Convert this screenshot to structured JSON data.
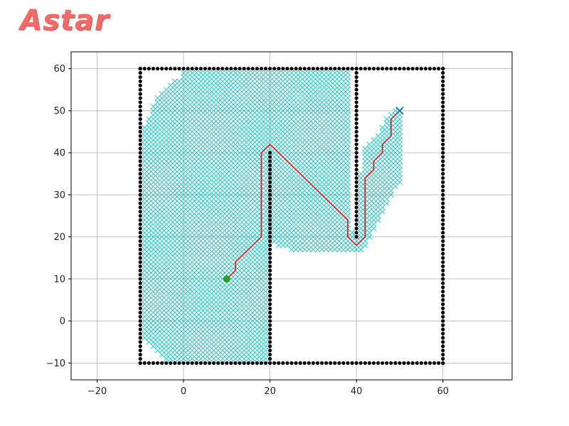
{
  "app": {
    "title": "Astar"
  },
  "colors": {
    "background": "#ffffff",
    "title": "#f26b6b",
    "wall": "#000000",
    "explored": "#2ec4c4",
    "path": "#d62728",
    "start": "#2ca02c",
    "goal": "#1f77b4",
    "grid": "#b0b0b0"
  },
  "chart_data": {
    "type": "scatter",
    "title": "",
    "xlabel": "",
    "ylabel": "",
    "xlim": [
      -26,
      76
    ],
    "ylim": [
      -14,
      64
    ],
    "x_ticks": [
      -20,
      0,
      20,
      40,
      60
    ],
    "y_ticks": [
      -10,
      0,
      10,
      20,
      30,
      40,
      50,
      60
    ],
    "x_tick_labels": [
      "−20",
      "0",
      "20",
      "40",
      "60"
    ],
    "y_tick_labels": [
      "−10",
      "0",
      "10",
      "20",
      "30",
      "40",
      "50",
      "60"
    ],
    "grid": true,
    "grid_step": 2,
    "series": [
      {
        "name": "walls",
        "marker": "dot",
        "segments": [
          {
            "from": [
              -10,
              -10
            ],
            "to": [
              60,
              -10
            ]
          },
          {
            "from": [
              -10,
              60
            ],
            "to": [
              60,
              60
            ]
          },
          {
            "from": [
              -10,
              -10
            ],
            "to": [
              -10,
              60
            ]
          },
          {
            "from": [
              60,
              -10
            ],
            "to": [
              60,
              60
            ]
          },
          {
            "from": [
              20,
              -10
            ],
            "to": [
              20,
              40
            ]
          },
          {
            "from": [
              40,
              20
            ],
            "to": [
              40,
              60
            ]
          }
        ]
      },
      {
        "name": "explored",
        "marker": "x",
        "row_spans": [
          {
            "y": 59,
            "x_ranges": [
              [
                0,
                38
              ]
            ]
          },
          {
            "y": 58,
            "x_ranges": [
              [
                0,
                38
              ]
            ]
          },
          {
            "y": 57,
            "x_ranges": [
              [
                -2,
                38
              ]
            ]
          },
          {
            "y": 56,
            "x_ranges": [
              [
                -3,
                38
              ]
            ]
          },
          {
            "y": 55,
            "x_ranges": [
              [
                -4,
                38
              ]
            ]
          },
          {
            "y": 54,
            "x_ranges": [
              [
                -5,
                38
              ]
            ]
          },
          {
            "y": 53,
            "x_ranges": [
              [
                -6,
                38
              ]
            ]
          },
          {
            "y": 52,
            "x_ranges": [
              [
                -6,
                38
              ]
            ]
          },
          {
            "y": 51,
            "x_ranges": [
              [
                -7,
                38
              ]
            ]
          },
          {
            "y": 50,
            "x_ranges": [
              [
                -7,
                38
              ],
              [
                49,
                50
              ]
            ]
          },
          {
            "y": 49,
            "x_ranges": [
              [
                -7,
                38
              ],
              [
                48,
                50
              ]
            ]
          },
          {
            "y": 48,
            "x_ranges": [
              [
                -8,
                38
              ],
              [
                47,
                50
              ]
            ]
          },
          {
            "y": 47,
            "x_ranges": [
              [
                -8,
                38
              ],
              [
                47,
                50
              ]
            ]
          },
          {
            "y": 46,
            "x_ranges": [
              [
                -9,
                38
              ],
              [
                46,
                50
              ]
            ]
          },
          {
            "y": 45,
            "x_ranges": [
              [
                -9,
                38
              ],
              [
                46,
                50
              ]
            ]
          },
          {
            "y": 44,
            "x_ranges": [
              [
                -9,
                38
              ],
              [
                45,
                50
              ]
            ]
          },
          {
            "y": 43,
            "x_ranges": [
              [
                -9,
                38
              ],
              [
                44,
                50
              ]
            ]
          },
          {
            "y": 42,
            "x_ranges": [
              [
                -9,
                38
              ],
              [
                43,
                50
              ]
            ]
          },
          {
            "y": 41,
            "x_ranges": [
              [
                -9,
                38
              ],
              [
                42,
                50
              ]
            ]
          },
          {
            "y": 40,
            "x_ranges": [
              [
                -9,
                38
              ],
              [
                42,
                50
              ]
            ]
          },
          {
            "y": 39,
            "x_ranges": [
              [
                -9,
                38
              ],
              [
                42,
                50
              ]
            ]
          },
          {
            "y": 38,
            "x_ranges": [
              [
                -9,
                38
              ],
              [
                42,
                50
              ]
            ]
          },
          {
            "y": 37,
            "x_ranges": [
              [
                -9,
                38
              ],
              [
                42,
                50
              ]
            ]
          },
          {
            "y": 36,
            "x_ranges": [
              [
                -9,
                38
              ],
              [
                42,
                50
              ]
            ]
          },
          {
            "y": 35,
            "x_ranges": [
              [
                -9,
                38
              ],
              [
                41,
                50
              ]
            ]
          },
          {
            "y": 34,
            "x_ranges": [
              [
                -9,
                38
              ],
              [
                41,
                50
              ]
            ]
          },
          {
            "y": 33,
            "x_ranges": [
              [
                -9,
                38
              ],
              [
                41,
                50
              ]
            ]
          },
          {
            "y": 32,
            "x_ranges": [
              [
                -9,
                38
              ],
              [
                41,
                49
              ]
            ]
          },
          {
            "y": 31,
            "x_ranges": [
              [
                -9,
                38
              ],
              [
                41,
                48
              ]
            ]
          },
          {
            "y": 30,
            "x_ranges": [
              [
                -9,
                38
              ],
              [
                41,
                48
              ]
            ]
          },
          {
            "y": 29,
            "x_ranges": [
              [
                -9,
                38
              ],
              [
                41,
                47
              ]
            ]
          },
          {
            "y": 28,
            "x_ranges": [
              [
                -9,
                38
              ],
              [
                41,
                47
              ]
            ]
          },
          {
            "y": 27,
            "x_ranges": [
              [
                -9,
                38
              ],
              [
                41,
                46
              ]
            ]
          },
          {
            "y": 26,
            "x_ranges": [
              [
                -9,
                38
              ],
              [
                41,
                46
              ]
            ]
          },
          {
            "y": 25,
            "x_ranges": [
              [
                -9,
                38
              ],
              [
                41,
                45
              ]
            ]
          },
          {
            "y": 24,
            "x_ranges": [
              [
                -9,
                38
              ],
              [
                41,
                45
              ]
            ]
          },
          {
            "y": 23,
            "x_ranges": [
              [
                -9,
                38
              ],
              [
                41,
                44
              ]
            ]
          },
          {
            "y": 22,
            "x_ranges": [
              [
                -9,
                38
              ],
              [
                41,
                44
              ]
            ]
          },
          {
            "y": 21,
            "x_ranges": [
              [
                -9,
                39
              ],
              [
                41,
                43
              ]
            ]
          },
          {
            "y": 20,
            "x_ranges": [
              [
                -9,
                43
              ]
            ]
          },
          {
            "y": 19,
            "x_ranges": [
              [
                -9,
                42
              ]
            ]
          },
          {
            "y": 18,
            "x_ranges": [
              [
                -9,
                19
              ],
              [
                22,
                42
              ]
            ]
          },
          {
            "y": 17,
            "x_ranges": [
              [
                -9,
                19
              ],
              [
                25,
                41
              ]
            ]
          },
          {
            "y": 16,
            "x_ranges": [
              [
                -9,
                19
              ]
            ]
          },
          {
            "y": 15,
            "x_ranges": [
              [
                -9,
                19
              ]
            ]
          },
          {
            "y": 14,
            "x_ranges": [
              [
                -9,
                19
              ]
            ]
          },
          {
            "y": 13,
            "x_ranges": [
              [
                -9,
                19
              ]
            ]
          },
          {
            "y": 12,
            "x_ranges": [
              [
                -9,
                19
              ]
            ]
          },
          {
            "y": 11,
            "x_ranges": [
              [
                -9,
                19
              ]
            ]
          },
          {
            "y": 10,
            "x_ranges": [
              [
                -9,
                19
              ]
            ]
          },
          {
            "y": 9,
            "x_ranges": [
              [
                -9,
                19
              ]
            ]
          },
          {
            "y": 8,
            "x_ranges": [
              [
                -9,
                19
              ]
            ]
          },
          {
            "y": 7,
            "x_ranges": [
              [
                -9,
                19
              ]
            ]
          },
          {
            "y": 6,
            "x_ranges": [
              [
                -9,
                19
              ]
            ]
          },
          {
            "y": 5,
            "x_ranges": [
              [
                -9,
                19
              ]
            ]
          },
          {
            "y": 4,
            "x_ranges": [
              [
                -9,
                19
              ]
            ]
          },
          {
            "y": 3,
            "x_ranges": [
              [
                -9,
                19
              ]
            ]
          },
          {
            "y": 2,
            "x_ranges": [
              [
                -9,
                19
              ]
            ]
          },
          {
            "y": 1,
            "x_ranges": [
              [
                -9,
                19
              ]
            ]
          },
          {
            "y": 0,
            "x_ranges": [
              [
                -9,
                19
              ]
            ]
          },
          {
            "y": -1,
            "x_ranges": [
              [
                -9,
                19
              ]
            ]
          },
          {
            "y": -2,
            "x_ranges": [
              [
                -9,
                19
              ]
            ]
          },
          {
            "y": -3,
            "x_ranges": [
              [
                -9,
                19
              ]
            ]
          },
          {
            "y": -4,
            "x_ranges": [
              [
                -9,
                19
              ]
            ]
          },
          {
            "y": -5,
            "x_ranges": [
              [
                -8,
                19
              ]
            ]
          },
          {
            "y": -6,
            "x_ranges": [
              [
                -7,
                19
              ]
            ]
          },
          {
            "y": -7,
            "x_ranges": [
              [
                -6,
                19
              ]
            ]
          },
          {
            "y": -8,
            "x_ranges": [
              [
                -5,
                19
              ]
            ]
          },
          {
            "y": -9,
            "x_ranges": [
              [
                -4,
                19
              ]
            ]
          }
        ]
      },
      {
        "name": "path",
        "marker": "line",
        "points": [
          [
            10,
            10
          ],
          [
            11,
            11
          ],
          [
            12,
            12
          ],
          [
            12,
            14
          ],
          [
            14,
            16
          ],
          [
            16,
            18
          ],
          [
            18,
            20
          ],
          [
            18,
            40
          ],
          [
            20,
            42
          ],
          [
            22,
            40
          ],
          [
            38,
            24
          ],
          [
            38,
            20
          ],
          [
            40,
            18
          ],
          [
            42,
            20
          ],
          [
            42,
            34
          ],
          [
            44,
            36
          ],
          [
            44,
            38
          ],
          [
            46,
            40
          ],
          [
            46,
            42
          ],
          [
            48,
            44
          ],
          [
            48,
            48
          ],
          [
            50,
            50
          ]
        ]
      },
      {
        "name": "start",
        "marker": "circle",
        "points": [
          [
            10,
            10
          ]
        ]
      },
      {
        "name": "goal",
        "marker": "x",
        "points": [
          [
            50,
            50
          ]
        ]
      }
    ]
  }
}
